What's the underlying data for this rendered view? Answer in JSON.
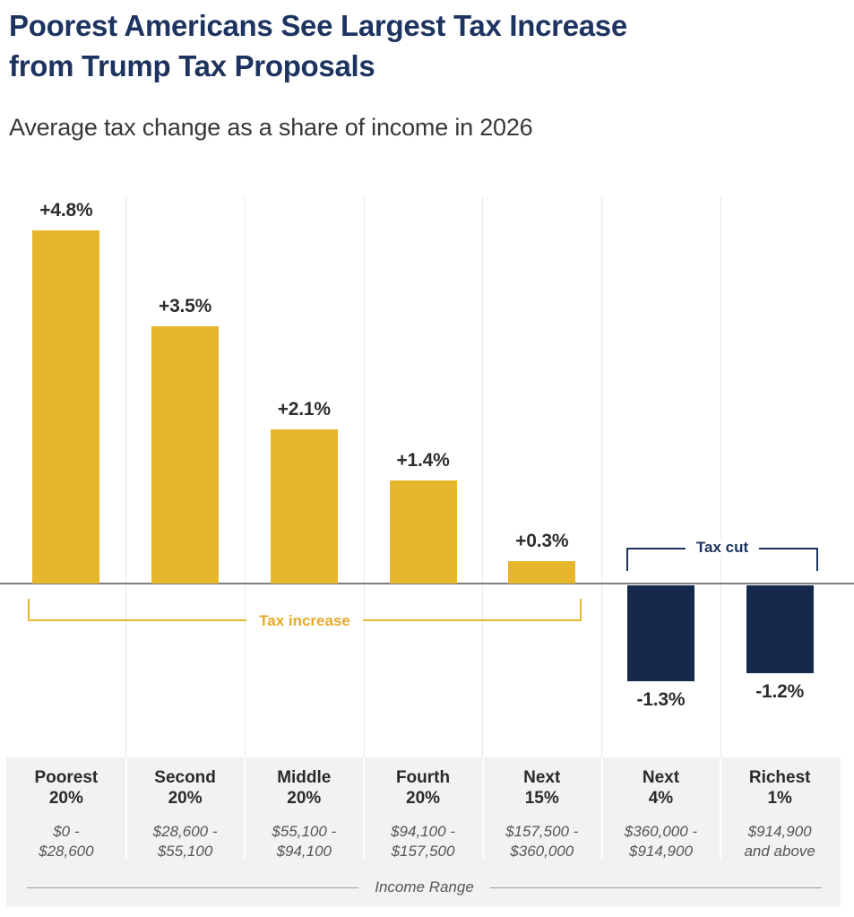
{
  "header": {
    "title_line1": "Poorest Americans See Largest Tax Increase",
    "title_line2": "from Trump Tax Proposals",
    "subtitle": "Average tax change as a share of income in 2026"
  },
  "annotations": {
    "tax_increase_label": "Tax increase",
    "tax_cut_label": "Tax cut",
    "xaxis_label": "Income Range"
  },
  "colors": {
    "gold": "#E6B72C",
    "navy": "#14294B",
    "title_navy": "#1D3460",
    "value_label": "#2D2D2D",
    "category_name": "#2A2A2A",
    "range_gray": "#565658",
    "panel_gray": "#F2F2F1",
    "gridline": "#E8E8E8",
    "axis_gray": "#7F7F7F"
  },
  "chart_data": {
    "type": "bar",
    "title": "Poorest Americans See Largest Tax Increase from Trump Tax Proposals",
    "subtitle": "Average tax change as a share of income in 2026",
    "xlabel": "Income Range",
    "ylabel": "Average tax change as a share of income (%)",
    "ylim": [
      -2.4,
      5.3
    ],
    "grid": "vertical column separators only",
    "legend": "none",
    "categories": [
      "Poorest 20%",
      "Second 20%",
      "Middle 20%",
      "Fourth 20%",
      "Next 15%",
      "Next 4%",
      "Richest 1%"
    ],
    "values": [
      4.8,
      3.5,
      2.1,
      1.4,
      0.3,
      -1.3,
      -1.2
    ],
    "bars": [
      {
        "name_line1": "Poorest",
        "name_line2": "20%",
        "range_line1": "$0 -",
        "range_line2": "$28,600",
        "value": 4.8,
        "value_label": "+4.8%",
        "color": "gold"
      },
      {
        "name_line1": "Second",
        "name_line2": "20%",
        "range_line1": "$28,600 -",
        "range_line2": "$55,100",
        "value": 3.5,
        "value_label": "+3.5%",
        "color": "gold"
      },
      {
        "name_line1": "Middle",
        "name_line2": "20%",
        "range_line1": "$55,100 -",
        "range_line2": "$94,100",
        "value": 2.1,
        "value_label": "+2.1%",
        "color": "gold"
      },
      {
        "name_line1": "Fourth",
        "name_line2": "20%",
        "range_line1": "$94,100 -",
        "range_line2": "$157,500",
        "value": 1.4,
        "value_label": "+1.4%",
        "color": "gold"
      },
      {
        "name_line1": "Next",
        "name_line2": "15%",
        "range_line1": "$157,500 -",
        "range_line2": "$360,000",
        "value": 0.3,
        "value_label": "+0.3%",
        "color": "gold"
      },
      {
        "name_line1": "Next",
        "name_line2": "4%",
        "range_line1": "$360,000 -",
        "range_line2": "$914,900",
        "value": -1.3,
        "value_label": "-1.3%",
        "color": "navy"
      },
      {
        "name_line1": "Richest",
        "name_line2": "1%",
        "range_line1": "$914,900",
        "range_line2": "and above",
        "value": -1.2,
        "value_label": "-1.2%",
        "color": "navy"
      }
    ]
  }
}
